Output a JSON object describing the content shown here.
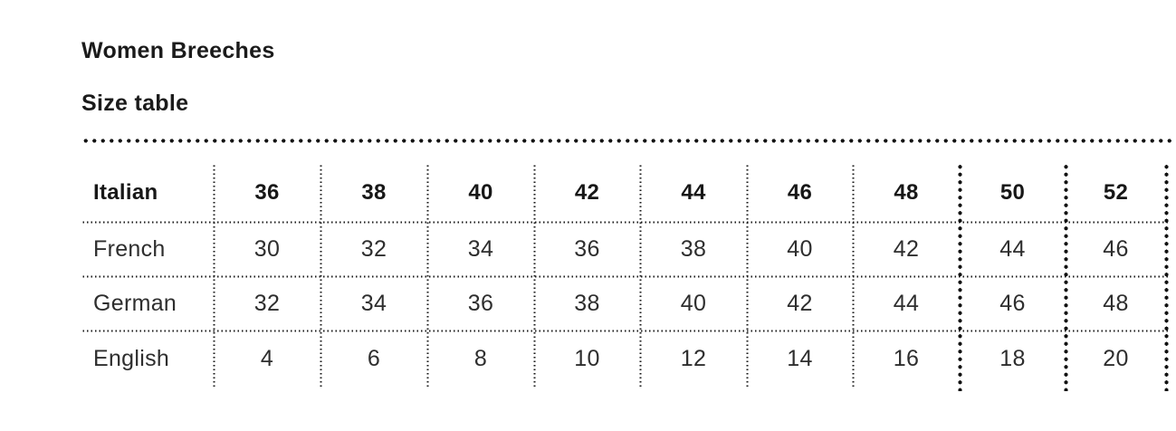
{
  "page": {
    "title": "Women Breeches",
    "subtitle": "Size table"
  },
  "table": {
    "header": {
      "label": "Italian",
      "sizes": [
        "36",
        "38",
        "40",
        "42",
        "44",
        "46",
        "48",
        "50",
        "52"
      ]
    },
    "rows": [
      {
        "label": "French",
        "values": [
          "30",
          "32",
          "34",
          "36",
          "38",
          "40",
          "42",
          "44",
          "46"
        ]
      },
      {
        "label": "German",
        "values": [
          "32",
          "34",
          "36",
          "38",
          "40",
          "42",
          "44",
          "46",
          "48"
        ]
      },
      {
        "label": "English",
        "values": [
          "4",
          "6",
          "8",
          "10",
          "12",
          "14",
          "16",
          "18",
          "20"
        ]
      }
    ]
  }
}
